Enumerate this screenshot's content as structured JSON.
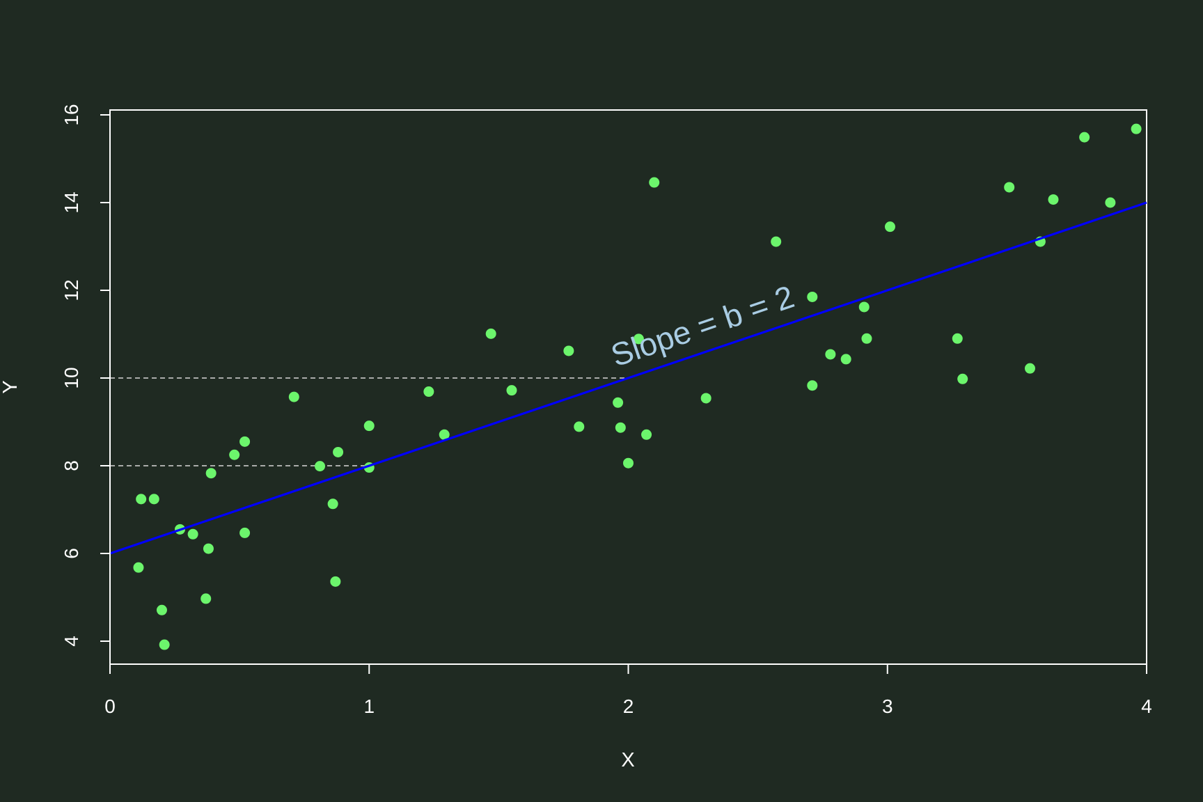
{
  "chart_data": {
    "type": "scatter",
    "title": "",
    "xlabel": "X",
    "ylabel": "Y",
    "xlim": [
      0,
      4
    ],
    "ylim": [
      3.45,
      16.1
    ],
    "x_ticks": [
      "0",
      "1",
      "2",
      "3",
      "4"
    ],
    "y_ticks": [
      "4",
      "6",
      "8",
      "10",
      "12",
      "14",
      "16"
    ],
    "grid": false,
    "colors": {
      "background": "#1f2a22",
      "points": "#6cf56c",
      "regression_line": "#0000ff",
      "guides": "#d8d8d8",
      "annotation": "#a9cce3",
      "axes": "#ffffff"
    },
    "points": [
      {
        "x": 0.11,
        "y": 5.68
      },
      {
        "x": 0.12,
        "y": 7.24
      },
      {
        "x": 0.17,
        "y": 7.24
      },
      {
        "x": 0.2,
        "y": 4.71
      },
      {
        "x": 0.21,
        "y": 3.92
      },
      {
        "x": 0.27,
        "y": 6.55
      },
      {
        "x": 0.32,
        "y": 6.44
      },
      {
        "x": 0.37,
        "y": 4.97
      },
      {
        "x": 0.38,
        "y": 6.11
      },
      {
        "x": 0.39,
        "y": 7.83
      },
      {
        "x": 0.48,
        "y": 8.25
      },
      {
        "x": 0.52,
        "y": 8.55
      },
      {
        "x": 0.52,
        "y": 6.47
      },
      {
        "x": 0.71,
        "y": 9.57
      },
      {
        "x": 0.81,
        "y": 7.99
      },
      {
        "x": 0.86,
        "y": 7.13
      },
      {
        "x": 0.87,
        "y": 5.36
      },
      {
        "x": 0.88,
        "y": 8.31
      },
      {
        "x": 1.0,
        "y": 8.91
      },
      {
        "x": 1.0,
        "y": 7.96
      },
      {
        "x": 1.23,
        "y": 9.69
      },
      {
        "x": 1.29,
        "y": 8.71
      },
      {
        "x": 1.47,
        "y": 11.01
      },
      {
        "x": 1.55,
        "y": 9.72
      },
      {
        "x": 1.77,
        "y": 10.62
      },
      {
        "x": 1.81,
        "y": 8.89
      },
      {
        "x": 1.96,
        "y": 9.44
      },
      {
        "x": 1.97,
        "y": 8.87
      },
      {
        "x": 2.0,
        "y": 8.06
      },
      {
        "x": 2.04,
        "y": 10.89
      },
      {
        "x": 2.07,
        "y": 8.71
      },
      {
        "x": 2.1,
        "y": 14.46
      },
      {
        "x": 2.3,
        "y": 9.54
      },
      {
        "x": 2.57,
        "y": 13.11
      },
      {
        "x": 2.71,
        "y": 9.83
      },
      {
        "x": 2.71,
        "y": 11.85
      },
      {
        "x": 2.78,
        "y": 10.54
      },
      {
        "x": 2.84,
        "y": 10.43
      },
      {
        "x": 2.91,
        "y": 11.62
      },
      {
        "x": 2.92,
        "y": 10.9
      },
      {
        "x": 3.01,
        "y": 13.45
      },
      {
        "x": 3.27,
        "y": 10.9
      },
      {
        "x": 3.29,
        "y": 9.98
      },
      {
        "x": 3.47,
        "y": 14.35
      },
      {
        "x": 3.55,
        "y": 10.22
      },
      {
        "x": 3.59,
        "y": 13.11
      },
      {
        "x": 3.64,
        "y": 14.07
      },
      {
        "x": 3.76,
        "y": 15.49
      },
      {
        "x": 3.86,
        "y": 14.0
      },
      {
        "x": 3.96,
        "y": 15.68
      }
    ],
    "regression_line": {
      "intercept": 6,
      "slope": 2,
      "x_range": [
        0,
        4
      ]
    },
    "guide_lines": [
      {
        "y": 8,
        "x_from": 0,
        "x_to": 1
      },
      {
        "y": 10,
        "x_from": 0,
        "x_to": 2
      }
    ],
    "annotation": {
      "text": "Slope = b = 2",
      "x": 2.3,
      "y": 10.95
    }
  }
}
